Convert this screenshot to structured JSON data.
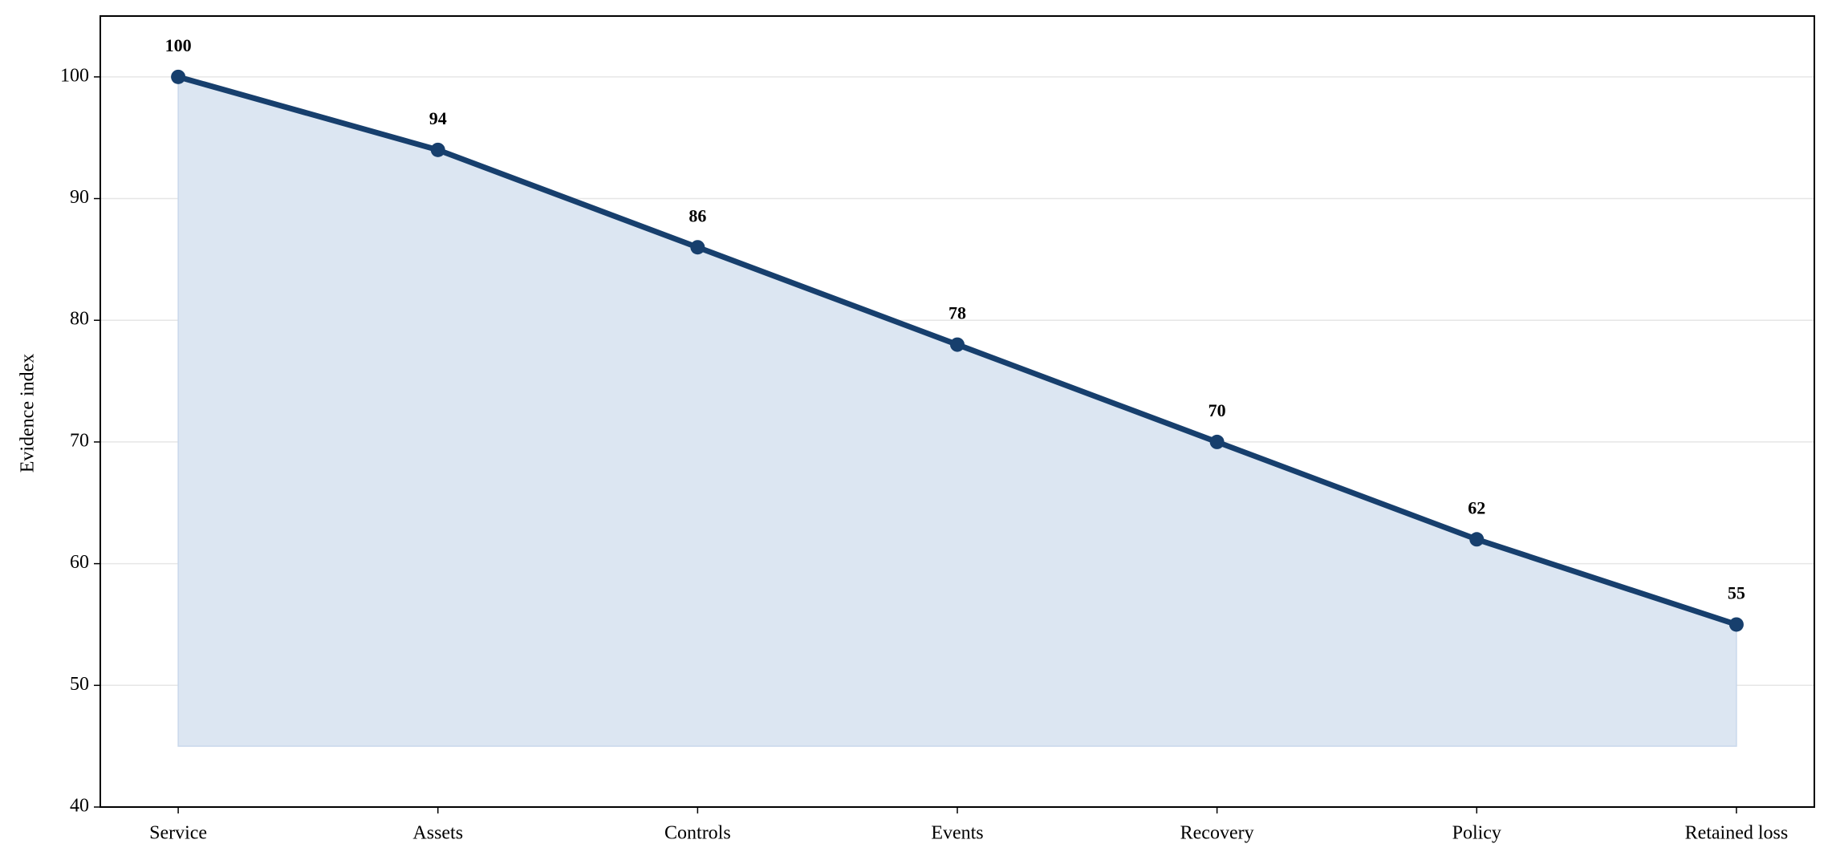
{
  "chart_data": {
    "type": "line",
    "ylabel": "Evidence index",
    "categories": [
      "Service",
      "Assets",
      "Controls",
      "Events",
      "Recovery",
      "Policy",
      "Retained loss"
    ],
    "series": [
      {
        "name": "Evidence index",
        "color": "#173f6d",
        "fill": "#dce6f2",
        "values": [
          100,
          94,
          86,
          78,
          70,
          62,
          55
        ]
      }
    ],
    "area_baseline": 45,
    "ylim": [
      40,
      105
    ],
    "yticks": [
      40,
      50,
      60,
      70,
      80,
      90,
      100
    ],
    "grid": true
  }
}
